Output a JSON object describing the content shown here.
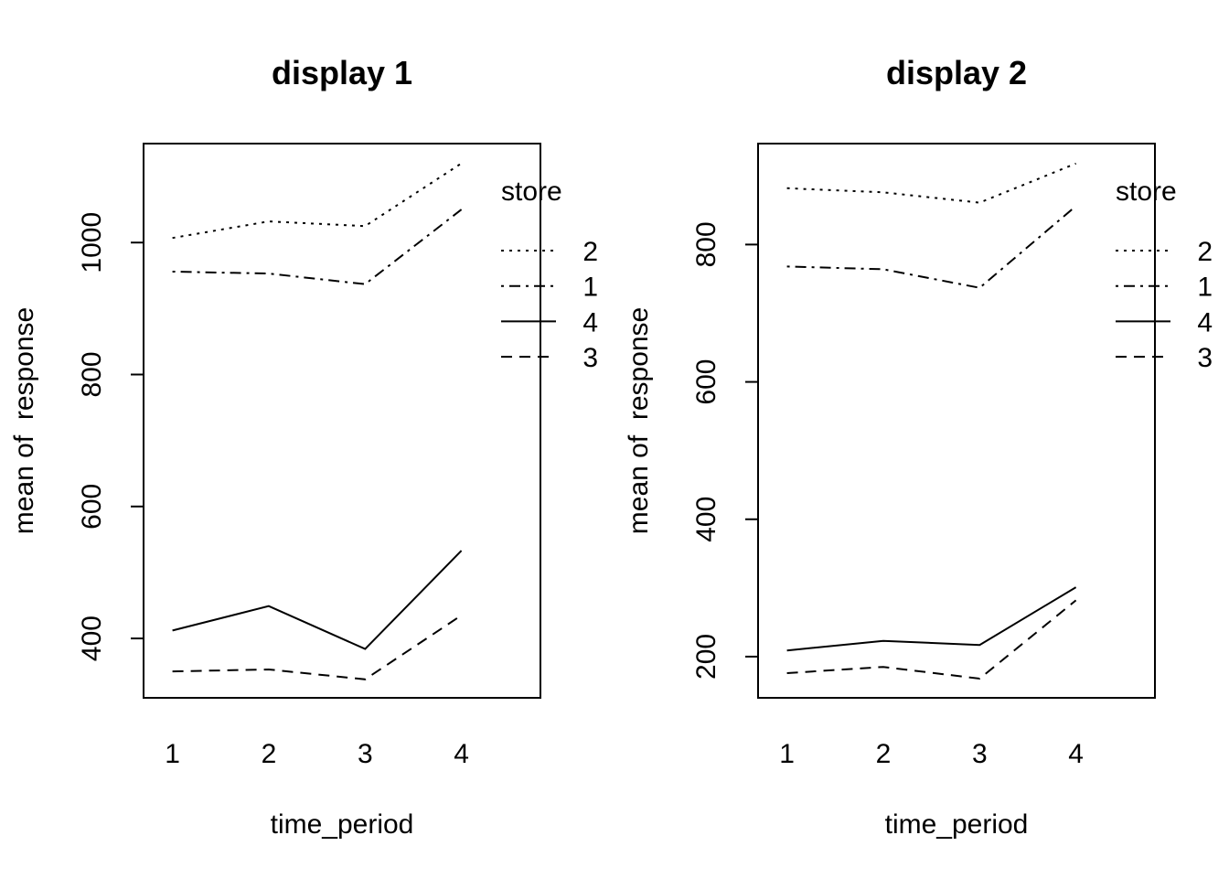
{
  "chart_data": [
    {
      "type": "line",
      "title": "display 1",
      "xlabel": "time_period",
      "ylabel": "mean of  response",
      "x": [
        1,
        2,
        3,
        4
      ],
      "xlim": [
        0.7,
        4.82
      ],
      "ylim": [
        310,
        1150
      ],
      "yticks": [
        400,
        600,
        800,
        1000
      ],
      "legend": {
        "title": "store",
        "position": "right",
        "order": [
          "2",
          "1",
          "4",
          "3"
        ]
      },
      "series": [
        {
          "name": "2",
          "dash": "dotted",
          "values": [
            1007,
            1032,
            1025,
            1120
          ]
        },
        {
          "name": "1",
          "dash": "dotdash",
          "values": [
            956,
            953,
            937,
            1050
          ]
        },
        {
          "name": "4",
          "dash": "solid",
          "values": [
            412,
            449,
            384,
            533
          ]
        },
        {
          "name": "3",
          "dash": "dashed",
          "values": [
            350,
            353,
            338,
            435
          ]
        }
      ]
    },
    {
      "type": "line",
      "title": "display 2",
      "xlabel": "time_period",
      "ylabel": "mean of  response",
      "x": [
        1,
        2,
        3,
        4
      ],
      "xlim": [
        0.7,
        4.82
      ],
      "ylim": [
        140,
        947
      ],
      "yticks": [
        200,
        400,
        600,
        800
      ],
      "legend": {
        "title": "store",
        "position": "right",
        "order": [
          "2",
          "1",
          "4",
          "3"
        ]
      },
      "series": [
        {
          "name": "2",
          "dash": "dotted",
          "values": [
            882,
            876,
            861,
            918
          ]
        },
        {
          "name": "1",
          "dash": "dotdash",
          "values": [
            768,
            764,
            737,
            856
          ]
        },
        {
          "name": "4",
          "dash": "solid",
          "values": [
            209,
            223,
            217,
            301
          ]
        },
        {
          "name": "3",
          "dash": "dashed",
          "values": [
            176,
            185,
            168,
            282
          ]
        }
      ]
    }
  ]
}
